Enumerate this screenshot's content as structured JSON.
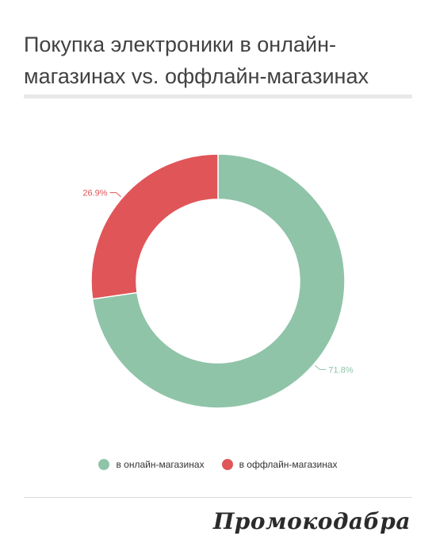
{
  "title": "Покупка электроники в онлайн-магазинах vs. оффлайн-магазинах",
  "brand": "Промокодабра",
  "chart_data": {
    "type": "pie",
    "donut": true,
    "categories": [
      "в онлайн-магазинах",
      "в оффлайн-магазинах"
    ],
    "values": [
      71.8,
      26.9
    ],
    "labels": [
      "71.8%",
      "26.9%"
    ],
    "colors": [
      "#8fc4a8",
      "#e05558"
    ],
    "legend": "bottom"
  }
}
